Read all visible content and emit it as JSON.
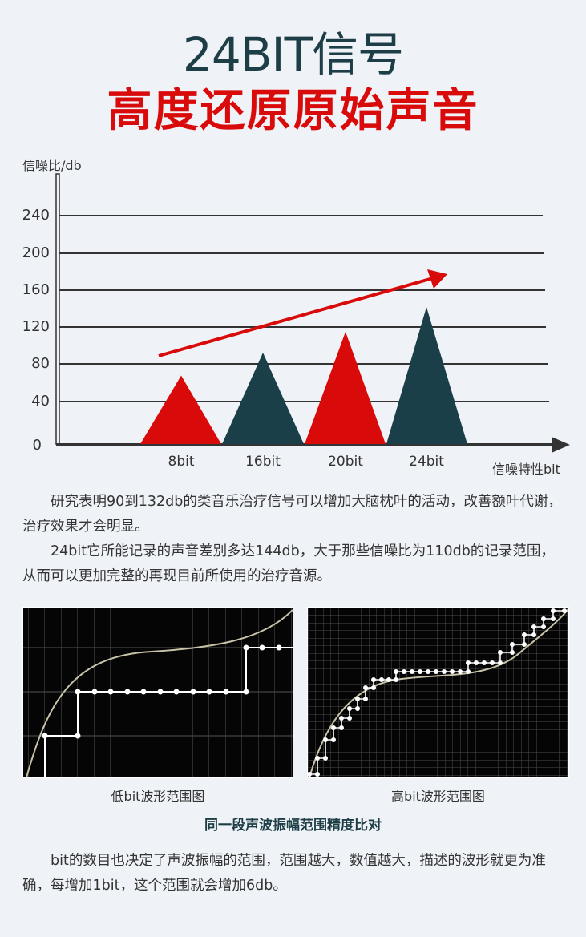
{
  "header": {
    "title": "24BIT信号",
    "subtitle": "高度还原原始声音"
  },
  "chart_data": {
    "type": "bar",
    "shape": "triangle",
    "title": "",
    "ylabel": "信噪比/db",
    "xlabel": "信噪特性bit",
    "categories": [
      "8bit",
      "16bit",
      "20bit",
      "24bit"
    ],
    "values": [
      72,
      96,
      118,
      144
    ],
    "colors": [
      "#d90a0a",
      "#1a3f48",
      "#d90a0a",
      "#1a3f48"
    ],
    "yticks": [
      0,
      40,
      80,
      120,
      160,
      200,
      240
    ],
    "ylim": [
      0,
      240
    ],
    "grid": true,
    "annotations": [
      {
        "type": "arrow",
        "color": "#d90a0a",
        "direction": "up-right",
        "meaning": "increasing trend"
      }
    ]
  },
  "chart": {
    "ylabel": "信噪比/db",
    "xlabel": "信噪特性bit",
    "yticks": [
      "240",
      "200",
      "160",
      "120",
      "80",
      "40",
      "0"
    ],
    "xticks": [
      "8bit",
      "16bit",
      "20bit",
      "24bit"
    ]
  },
  "paragraphs": [
    "研究表明90到132db的类音乐治疗信号可以增加大脑枕叶的活动，改善额叶代谢，治疗效果才会明显。",
    "24bit它所能记录的声音差别多达144db，大于那些信噪比为110db的记录范围，从而可以更加完整的再现目前所使用的治疗音源。"
  ],
  "comparison": {
    "low_caption": "低bit波形范围图",
    "high_caption": "高bit波形范围图",
    "title": "同一段声波振幅范围精度比对"
  },
  "footer_paragraph": "bit的数目也决定了声波振幅的范围，范围越大，数值越大，描述的波形就更为准确，每增加1bit，这个范围就会增加6db。"
}
